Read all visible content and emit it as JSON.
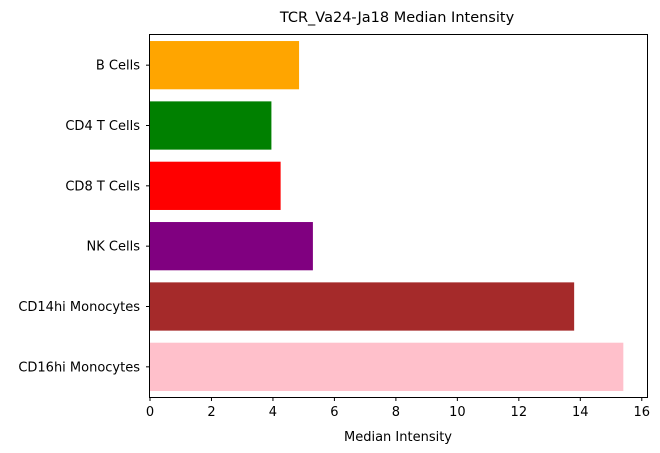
{
  "chart_data": {
    "type": "bar",
    "orientation": "horizontal",
    "title": "TCR_Va24-Ja18 Median Intensity",
    "xlabel": "Median Intensity",
    "ylabel": "",
    "xlim": [
      0,
      16.17
    ],
    "xticks": [
      0,
      2,
      4,
      6,
      8,
      10,
      12,
      14,
      16
    ],
    "grid": false,
    "categories": [
      "B Cells",
      "CD4 T Cells",
      "CD8 T Cells",
      "NK Cells",
      "CD14hi Monocytes",
      "CD16hi Monocytes"
    ],
    "values": [
      4.85,
      3.95,
      4.25,
      5.3,
      13.8,
      15.4
    ],
    "colors": [
      "#ffa500",
      "#008000",
      "#ff0000",
      "#800080",
      "#a52a2a",
      "#ffc0cb"
    ]
  }
}
